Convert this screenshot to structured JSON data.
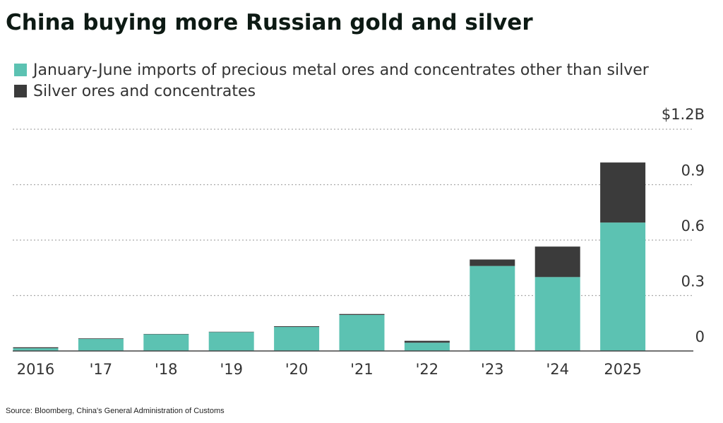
{
  "title": "China buying more Russian gold and silver",
  "source": "Source: Bloomberg, China's General Administration of Customs",
  "colors": {
    "other": "#5cc2b2",
    "silver": "#3b3b3b",
    "grid": "#aaaaaa",
    "axis": "#444444"
  },
  "chart_data": {
    "type": "bar",
    "stacked": true,
    "title": "China buying more Russian gold and silver",
    "categories": [
      "2016",
      "'17",
      "'18",
      "'19",
      "'20",
      "'21",
      "'22",
      "'23",
      "'24",
      "2025"
    ],
    "series": [
      {
        "name": "January-June imports of precious metal ores and concentrates other than silver",
        "color": "#5cc2b2",
        "values": [
          0.015,
          0.065,
          0.09,
          0.102,
          0.13,
          0.195,
          0.045,
          0.46,
          0.4,
          0.695
        ]
      },
      {
        "name": "Silver ores and concentrates",
        "color": "#3b3b3b",
        "values": [
          0.005,
          0.003,
          0.002,
          0.002,
          0.004,
          0.005,
          0.01,
          0.035,
          0.165,
          0.325
        ]
      }
    ],
    "y_ticks": [
      {
        "value": 0,
        "label": "0"
      },
      {
        "value": 0.3,
        "label": "0.3"
      },
      {
        "value": 0.6,
        "label": "0.6"
      },
      {
        "value": 0.9,
        "label": "0.9"
      },
      {
        "value": 1.2,
        "label": "$1.2B"
      }
    ],
    "ylim": [
      0,
      1.2
    ],
    "grid": true,
    "legend_position": "top-left"
  }
}
